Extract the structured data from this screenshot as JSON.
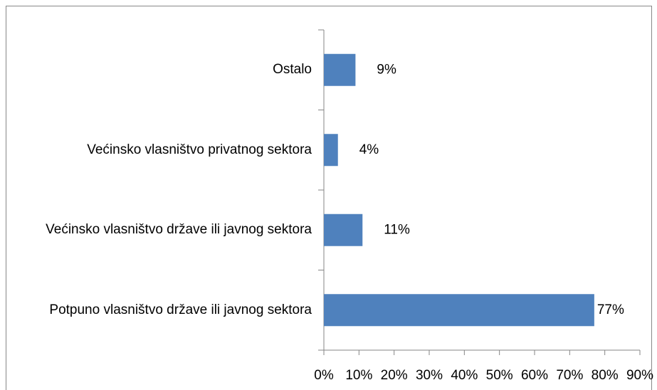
{
  "chart_data": {
    "type": "bar",
    "orientation": "horizontal",
    "categories": [
      "Ostalo",
      "Većinsko vlasništvo privatnog sektora",
      "Većinsko vlasništvo države ili javnog sektora",
      "Potpuno vlasništvo države ili javnog sektora"
    ],
    "values": [
      9,
      4,
      11,
      77
    ],
    "value_labels": [
      "9%",
      "4%",
      "11%",
      "77%"
    ],
    "color": "#4f81bd",
    "xlim": [
      0,
      90
    ],
    "xticks": [
      {
        "value": 0,
        "label": "0%"
      },
      {
        "value": 10,
        "label": "10%"
      },
      {
        "value": 20,
        "label": "20%"
      },
      {
        "value": 30,
        "label": "30%"
      },
      {
        "value": 40,
        "label": "40%"
      },
      {
        "value": 50,
        "label": "50%"
      },
      {
        "value": 60,
        "label": "60%"
      },
      {
        "value": 70,
        "label": "70%"
      },
      {
        "value": 80,
        "label": "80%"
      },
      {
        "value": 90,
        "label": "90%"
      }
    ],
    "grid": false
  }
}
